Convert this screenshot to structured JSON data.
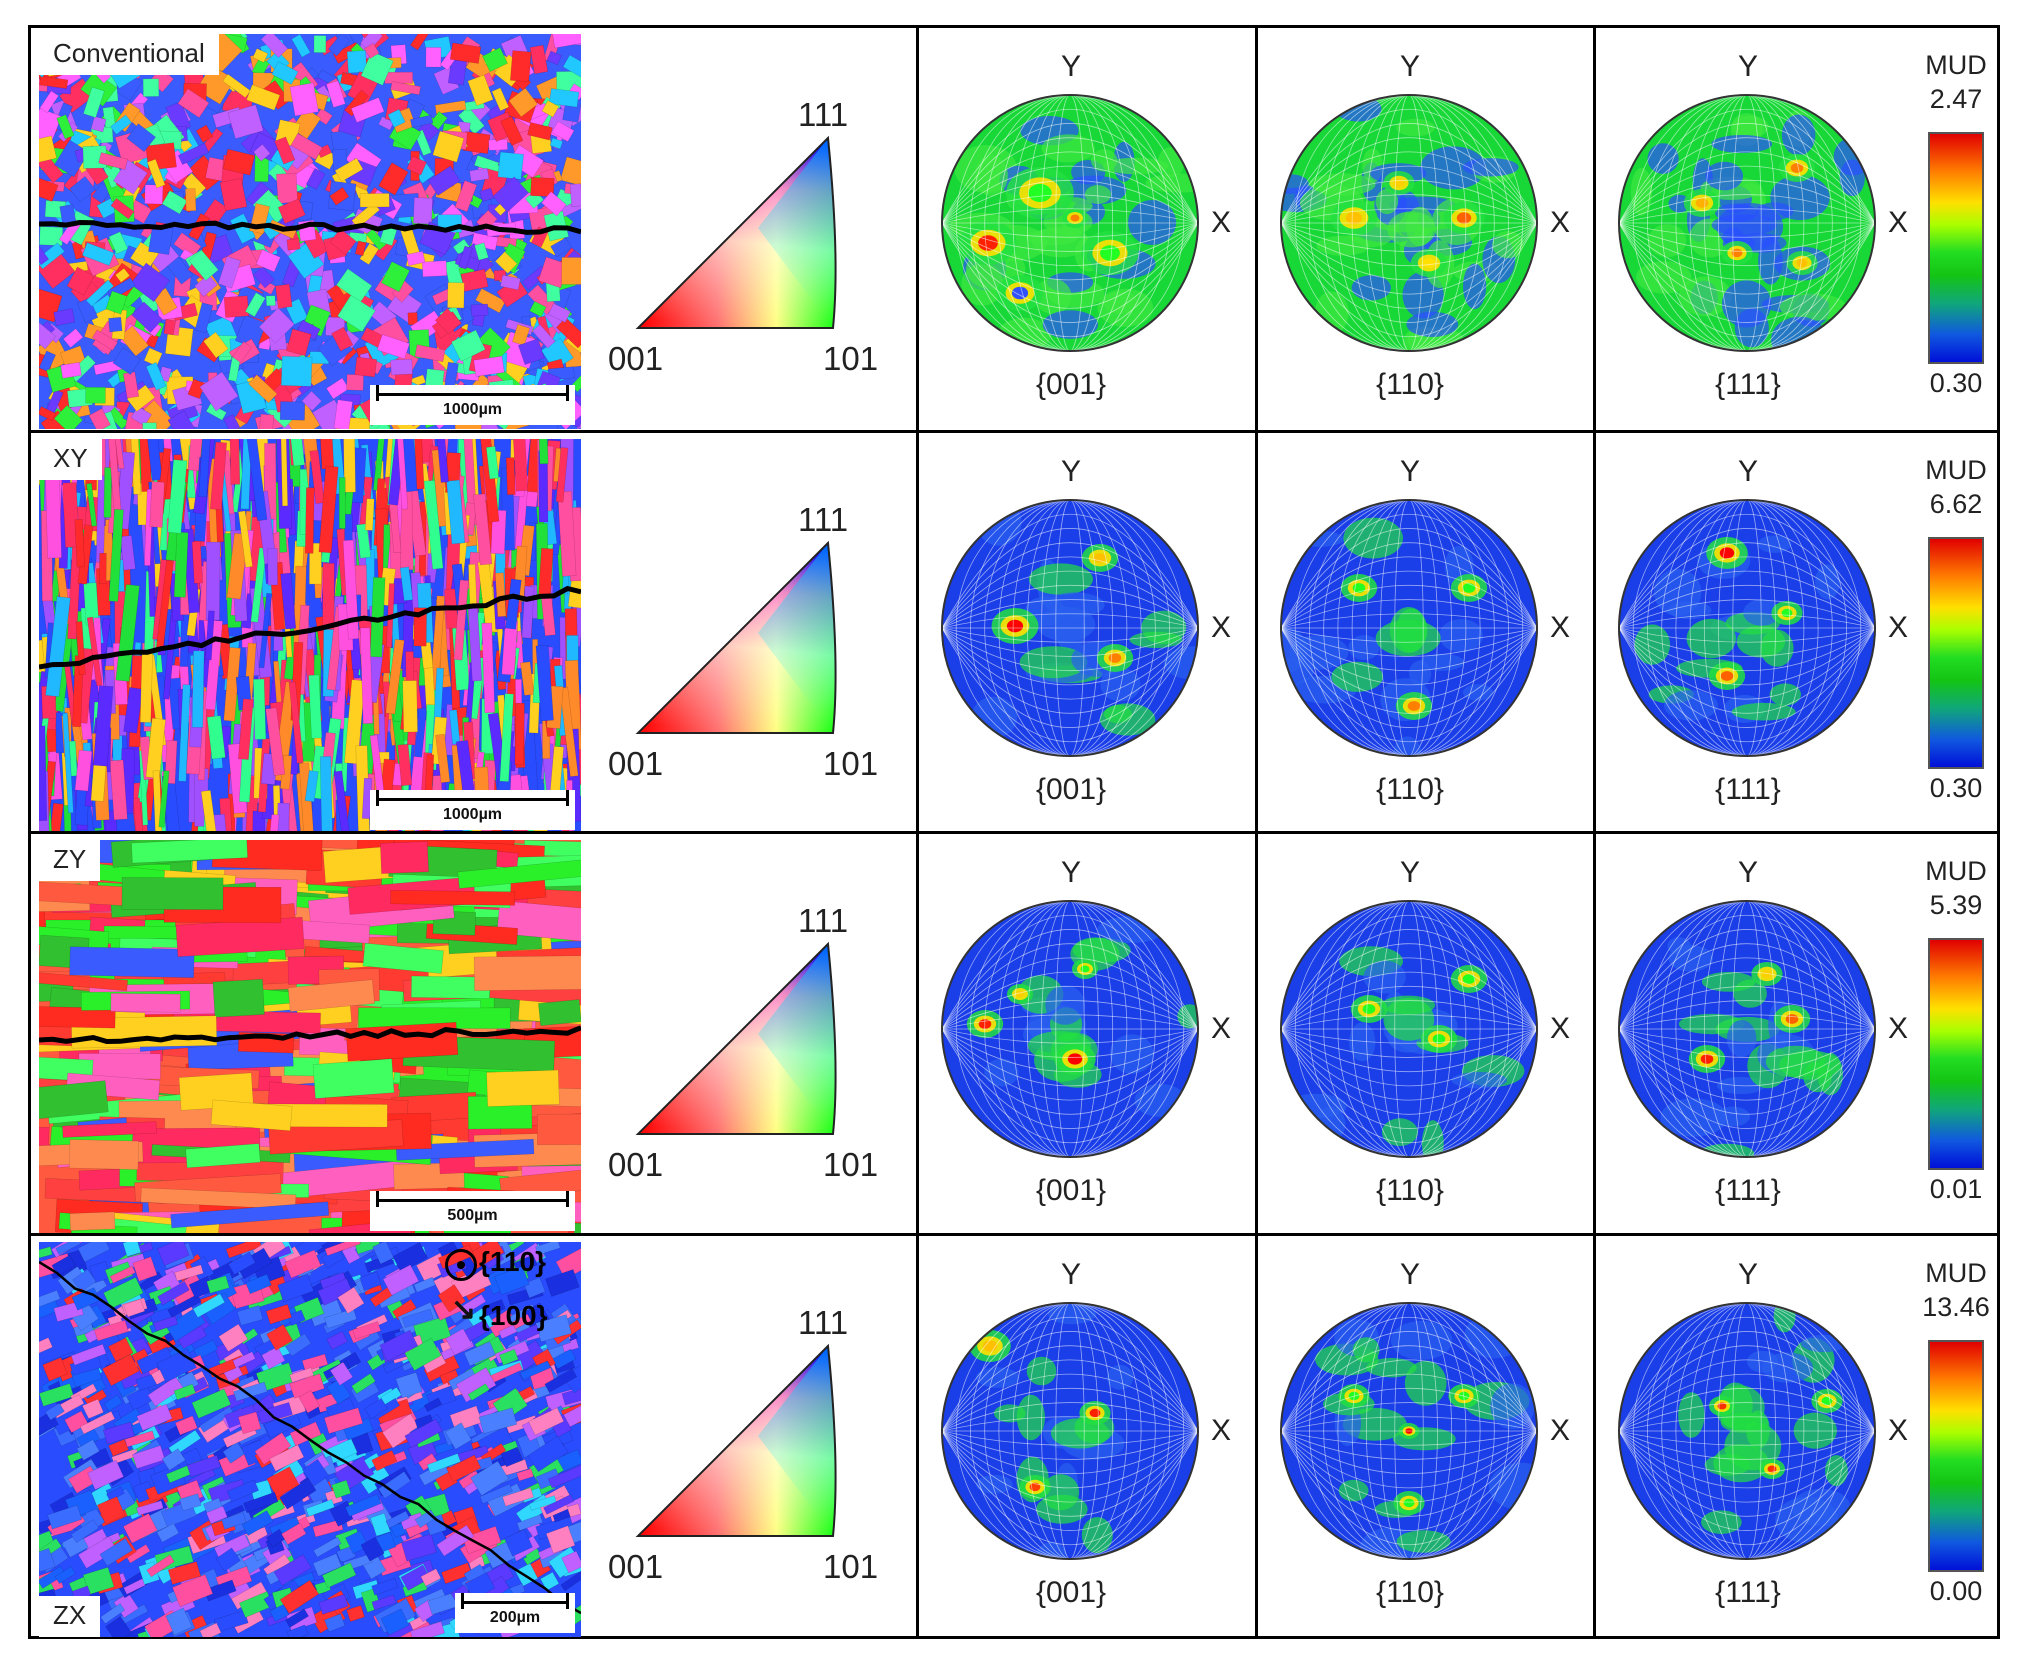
{
  "rows": [
    {
      "sample": "Conventional",
      "scale_bar": "1000µm",
      "ipf_labels": {
        "top": "111",
        "left": "001",
        "right": "101"
      },
      "pole_figures": [
        {
          "name": "{001}"
        },
        {
          "name": "{110}"
        },
        {
          "name": "{111}"
        }
      ],
      "axes": {
        "y": "Y",
        "x": "X"
      },
      "colorbar": {
        "title": "MUD",
        "max": "2.47",
        "min": "0.30"
      }
    },
    {
      "sample": "XY",
      "scale_bar": "1000µm",
      "ipf_labels": {
        "top": "111",
        "left": "001",
        "right": "101"
      },
      "pole_figures": [
        {
          "name": "{001}"
        },
        {
          "name": "{110}"
        },
        {
          "name": "{111}"
        }
      ],
      "axes": {
        "y": "Y",
        "x": "X"
      },
      "colorbar": {
        "title": "MUD",
        "max": "6.62",
        "min": "0.30"
      }
    },
    {
      "sample": "ZY",
      "scale_bar": "500µm",
      "ipf_labels": {
        "top": "111",
        "left": "001",
        "right": "101"
      },
      "pole_figures": [
        {
          "name": "{001}"
        },
        {
          "name": "{110}"
        },
        {
          "name": "{111}"
        }
      ],
      "axes": {
        "y": "Y",
        "x": "X"
      },
      "colorbar": {
        "title": "MUD",
        "max": "5.39",
        "min": "0.01"
      }
    },
    {
      "sample": "ZX",
      "scale_bar": "200µm",
      "annotations": {
        "plane_110": "{110}",
        "plane_100": "{100}"
      },
      "ipf_labels": {
        "top": "111",
        "left": "001",
        "right": "101"
      },
      "pole_figures": [
        {
          "name": "{001}"
        },
        {
          "name": "{110}"
        },
        {
          "name": "{111}"
        }
      ],
      "axes": {
        "y": "Y",
        "x": "X"
      },
      "colorbar": {
        "title": "MUD",
        "max": "13.46",
        "min": "0.00"
      }
    }
  ]
}
